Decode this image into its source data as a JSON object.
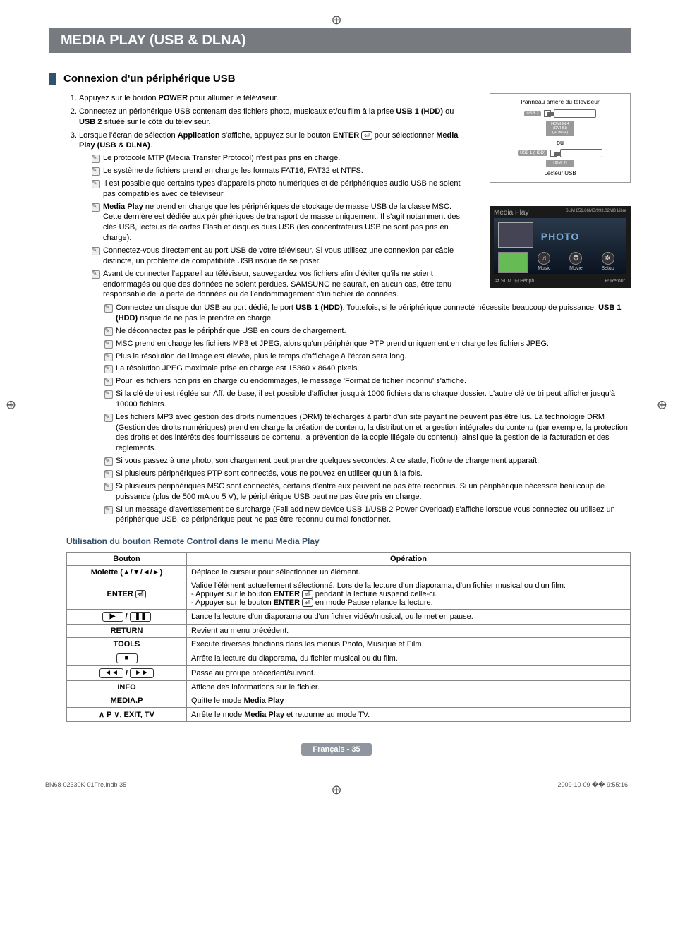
{
  "title_bar": "MEDIA PLAY (USB & DLNA)",
  "section_head": "Connexion d'un périphérique USB",
  "steps": {
    "s1": {
      "pre": "Appuyez sur le bouton ",
      "b1": "POWER",
      "post": " pour allumer le téléviseur."
    },
    "s2": {
      "pre": "Connectez un périphérique USB contenant des fichiers photo, musicaux et/ou film à la prise ",
      "b1": "USB 1 (HDD)",
      "mid": " ou ",
      "b2": "USB 2",
      "post": " située sur le côté du téléviseur."
    },
    "s3": {
      "pre": "Lorsque l'écran de sélection ",
      "b1": "Application",
      "mid": " s'affiche, appuyez sur le bouton ",
      "b2": "ENTER",
      "mid2": " pour sélectionner ",
      "b3": "Media Play (USB & DLNA)",
      "post": "."
    }
  },
  "notes_narrow": [
    "Le protocole MTP (Media Transfer Protocol) n'est pas pris en charge.",
    "Le système de fichiers prend en charge les formats FAT16, FAT32 et NTFS.",
    "Il est possible que certains types d'appareils photo numériques et de périphériques audio USB ne soient pas compatibles avec ce téléviseur.",
    "<b>Media Play</b> ne prend en charge que les périphériques de stockage de masse USB de la classe MSC. Cette dernière est dédiée aux périphériques de transport de masse uniquement. Il s'agit notamment des clés USB, lecteurs de cartes Flash et disques durs USB (les concentrateurs USB ne sont pas pris en charge).",
    "Connectez-vous directement au port USB de votre téléviseur. Si vous utilisez une connexion par câble distincte, un problème de compatibilité USB risque de se poser.",
    "Avant de connecter l'appareil au téléviseur, sauvegardez vos fichiers afin d'éviter qu'ils ne soient endommagés ou que des données ne soient perdues. SAMSUNG ne saurait, en aucun cas, être tenu responsable de la perte de données ou de l'endommagement d'un fichier de données."
  ],
  "notes_wide": [
    "Connectez un disque dur USB au port dédié, le port <b>USB 1 (HDD)</b>. Toutefois, si le périphérique connecté nécessite beaucoup de puissance, <b>USB 1 (HDD)</b> risque de ne pas le prendre en charge.",
    "Ne déconnectez pas le périphérique USB en cours de chargement.",
    "MSC prend en charge les fichiers MP3 et JPEG, alors qu'un périphérique PTP prend uniquement en charge les fichiers JPEG.",
    "Plus la résolution de l'image est élevée, plus le temps d'affichage à l'écran sera long.",
    "La résolution JPEG maximale prise en charge est 15360 x 8640 pixels.",
    "Pour les fichiers non pris en charge ou endommagés, le message 'Format de fichier inconnu' s'affiche.",
    "Si la clé de tri est réglée sur Aff. de base, il est possible d'afficher jusqu'à 1000 fichiers dans chaque dossier. L'autre clé de tri peut afficher jusqu'à 10000 fichiers.",
    "Les fichiers MP3 avec gestion des droits numériques (DRM) téléchargés à partir d'un site payant ne peuvent pas être lus. La technologie DRM (Gestion des droits numériques) prend en charge la création de contenu, la distribution et la gestion intégrales du contenu (par exemple, la protection des droits et des intérêts des fournisseurs de contenu, la prévention de la copie illégale du contenu), ainsi que la gestion de la facturation et des règlements.",
    "Si vous passez à une photo, son chargement peut prendre quelques secondes. A ce stade, l'icône de chargement apparaît.",
    "Si plusieurs périphériques PTP sont connectés, vous ne pouvez en utiliser qu'un à la fois.",
    "Si plusieurs périphériques MSC sont connectés, certains d'entre eux peuvent ne pas être reconnus. Si un périphérique nécessite beaucoup de puissance (plus de 500 mA ou 5 V), le périphérique USB peut ne pas être pris en charge.",
    "Si un message d'avertissement de surcharge (Fail add new device USB 1/USB 2 Power Overload) s'affiche lorsque vous connectez ou utilisez un périphérique USB, ce périphérique peut ne pas être reconnu ou mal fonctionner."
  ],
  "panel": {
    "caption": "Panneau arrière du téléviseur",
    "usb2": "USB 2",
    "hdmi": "HDMI IN 4\n(DVI IN)\n(HDMI 4)",
    "ou": "ou",
    "usb1": "USB 1 (HDD)",
    "ext": "Lecteur USB"
  },
  "mediaplay": {
    "title": "Media Play",
    "sum_top": "SUM",
    "devinfo": "851.86MB/993.02MB Libre",
    "photo": "PHOTO",
    "icons": {
      "photo": "Photo",
      "music": "Music",
      "movie": "Movie",
      "setup": "Setup"
    },
    "footer_left_sum": "SUM",
    "footer_left_periph": "Périph.",
    "footer_right": "Retour"
  },
  "sub_head": "Utilisation du bouton Remote Control dans le menu Media Play",
  "table": {
    "headers": {
      "btn": "Bouton",
      "op": "Opération"
    },
    "rows": [
      {
        "btn": "Molette (▲/▼/◄/►)",
        "op": "Déplace le curseur pour sélectionner un élément."
      },
      {
        "btn": "ENTER ⏎",
        "op": "Valide l'élément actuellement sélectionné. Lors de la lecture d'un diaporama, d'un fichier musical ou d'un film:\n- Appuyer sur le bouton <b>ENTER</b> ⏎ pendant la lecture suspend celle-ci.\n- Appuyer sur le bouton <b>ENTER</b> ⏎ en mode Pause relance la lecture."
      },
      {
        "btn": "▶ / ❚❚",
        "op": "Lance la lecture d'un diaporama ou d'un fichier vidéo/musical, ou le met en pause."
      },
      {
        "btn": "RETURN",
        "op": "Revient au menu précédent."
      },
      {
        "btn": "TOOLS",
        "op": "Exécute diverses fonctions dans les menus Photo, Musique et Film."
      },
      {
        "btn": "■",
        "op": "Arrête la lecture du diaporama, du fichier musical ou du film."
      },
      {
        "btn": "◄◄ / ►►",
        "op": "Passe au groupe précédent/suivant."
      },
      {
        "btn": "INFO",
        "op": "Affiche des informations sur le fichier."
      },
      {
        "btn": "MEDIA.P",
        "op": "Quitte le mode <b>Media Play</b>"
      },
      {
        "btn": "∧ P ∨, EXIT, TV",
        "op": "Arrête le mode <b>Media Play</b> et retourne au mode TV."
      }
    ]
  },
  "page_foot": "Français - 35",
  "bottom": {
    "left": "BN68-02330K-01Fre.indb   35",
    "right": "2009-10-09   �� 9:55:16"
  }
}
